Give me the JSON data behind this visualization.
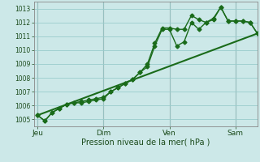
{
  "bg_color": "#cce8e8",
  "grid_color": "#99cccc",
  "line_color": "#1a6b1a",
  "xlabel": "Pression niveau de la mer( hPa )",
  "ylim": [
    1004.5,
    1013.5
  ],
  "yticks": [
    1005,
    1006,
    1007,
    1008,
    1009,
    1010,
    1011,
    1012,
    1013
  ],
  "xtick_labels": [
    "Jeu",
    "Dim",
    "Ven",
    "Sam"
  ],
  "xtick_positions": [
    0,
    36,
    72,
    108
  ],
  "xlim": [
    -2,
    120
  ],
  "vline_positions": [
    0,
    36,
    72,
    108
  ],
  "series": [
    {
      "x": [
        0,
        4,
        8,
        12,
        16,
        20,
        24,
        28,
        32,
        36,
        40,
        44,
        48,
        52,
        56,
        60,
        64,
        68,
        72,
        76,
        80,
        84,
        88,
        92,
        96,
        100,
        104,
        108,
        112,
        116,
        120
      ],
      "y": [
        1005.3,
        1004.9,
        1005.5,
        1005.8,
        1006.1,
        1006.2,
        1006.3,
        1006.4,
        1006.5,
        1006.6,
        1007.0,
        1007.3,
        1007.6,
        1007.9,
        1008.4,
        1009.0,
        1010.5,
        1011.6,
        1011.6,
        1011.5,
        1011.5,
        1012.5,
        1012.2,
        1012.0,
        1012.3,
        1013.1,
        1012.1,
        1012.1,
        1012.1,
        1012.0,
        1011.2
      ],
      "marker": "D",
      "markersize": 2.5,
      "linewidth": 1.0
    },
    {
      "x": [
        0,
        4,
        8,
        12,
        16,
        20,
        24,
        28,
        32,
        36,
        40,
        44,
        48,
        52,
        56,
        60,
        64,
        68,
        72,
        76,
        80,
        84,
        88,
        92,
        96,
        100,
        104,
        108,
        112,
        116,
        120
      ],
      "y": [
        1005.3,
        1004.9,
        1005.5,
        1005.8,
        1006.1,
        1006.2,
        1006.2,
        1006.3,
        1006.4,
        1006.5,
        1007.0,
        1007.3,
        1007.6,
        1007.9,
        1008.4,
        1008.8,
        1010.3,
        1011.5,
        1011.5,
        1010.3,
        1010.6,
        1012.0,
        1011.5,
        1012.0,
        1012.2,
        1013.1,
        1012.1,
        1012.1,
        1012.1,
        1012.0,
        1011.2
      ],
      "marker": "D",
      "markersize": 2.5,
      "linewidth": 1.0
    },
    {
      "x": [
        0,
        120
      ],
      "y": [
        1005.3,
        1011.2
      ],
      "marker": null,
      "markersize": 0,
      "linewidth": 1.5
    }
  ]
}
